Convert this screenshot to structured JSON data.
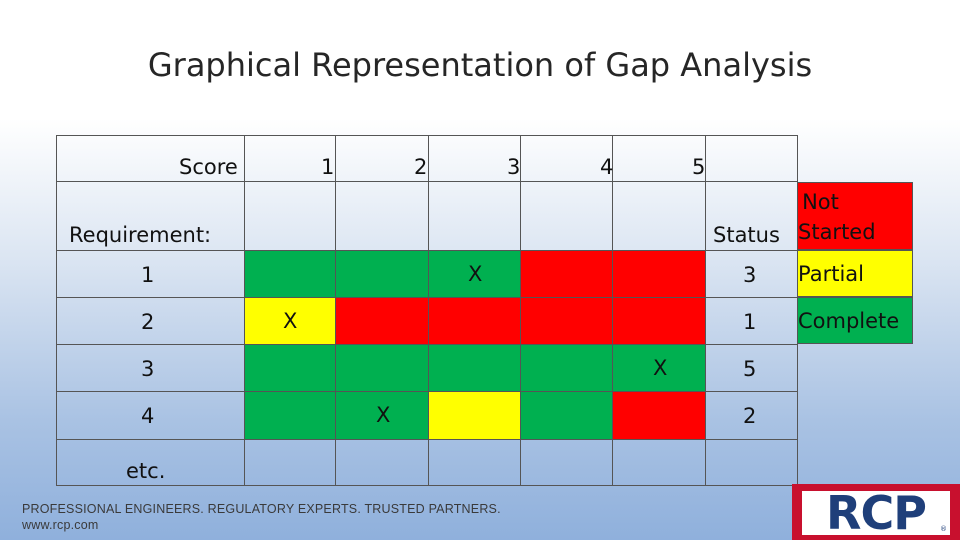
{
  "title": "Graphical Representation of Gap Analysis",
  "table": {
    "score_label": "Score",
    "score_columns": [
      "1",
      "2",
      "3",
      "4",
      "5"
    ],
    "requirement_label": "Requirement:",
    "status_label": "Status",
    "rows": [
      {
        "label": "1",
        "status": "3",
        "mark_column": 3,
        "mark": "X",
        "cells": [
          "green",
          "green",
          "green",
          "red",
          "red"
        ]
      },
      {
        "label": "2",
        "status": "1",
        "mark_column": 1,
        "mark": "X",
        "cells": [
          "yellow",
          "red",
          "red",
          "red",
          "red"
        ]
      },
      {
        "label": "3",
        "status": "5",
        "mark_column": 5,
        "mark": "X",
        "cells": [
          "green",
          "green",
          "green",
          "green",
          "green"
        ]
      },
      {
        "label": "4",
        "status": "2",
        "mark_column": 2,
        "mark": "X",
        "cells": [
          "green",
          "green",
          "yellow",
          "green",
          "red"
        ]
      },
      {
        "label": "etc.",
        "status": "",
        "mark_column": null,
        "mark": "",
        "cells": [
          "none",
          "none",
          "none",
          "none",
          "none"
        ]
      }
    ]
  },
  "legend": [
    {
      "label_line1": "Not",
      "label_line2": "Started",
      "color": "#ff0000"
    },
    {
      "label_line1": "Partial",
      "label_line2": "",
      "color": "#ffff00"
    },
    {
      "label_line1": "Complete",
      "label_line2": "",
      "color": "#00b050"
    }
  ],
  "colors": {
    "green": "#00b050",
    "yellow": "#ffff00",
    "red": "#ff0000"
  },
  "footer": {
    "line1": "PROFESSIONAL ENGINEERS. REGULATORY EXPERTS. TRUSTED PARTNERS.",
    "line2": "www.rcp.com"
  },
  "logo": {
    "text": "RCP",
    "reg": "®"
  }
}
